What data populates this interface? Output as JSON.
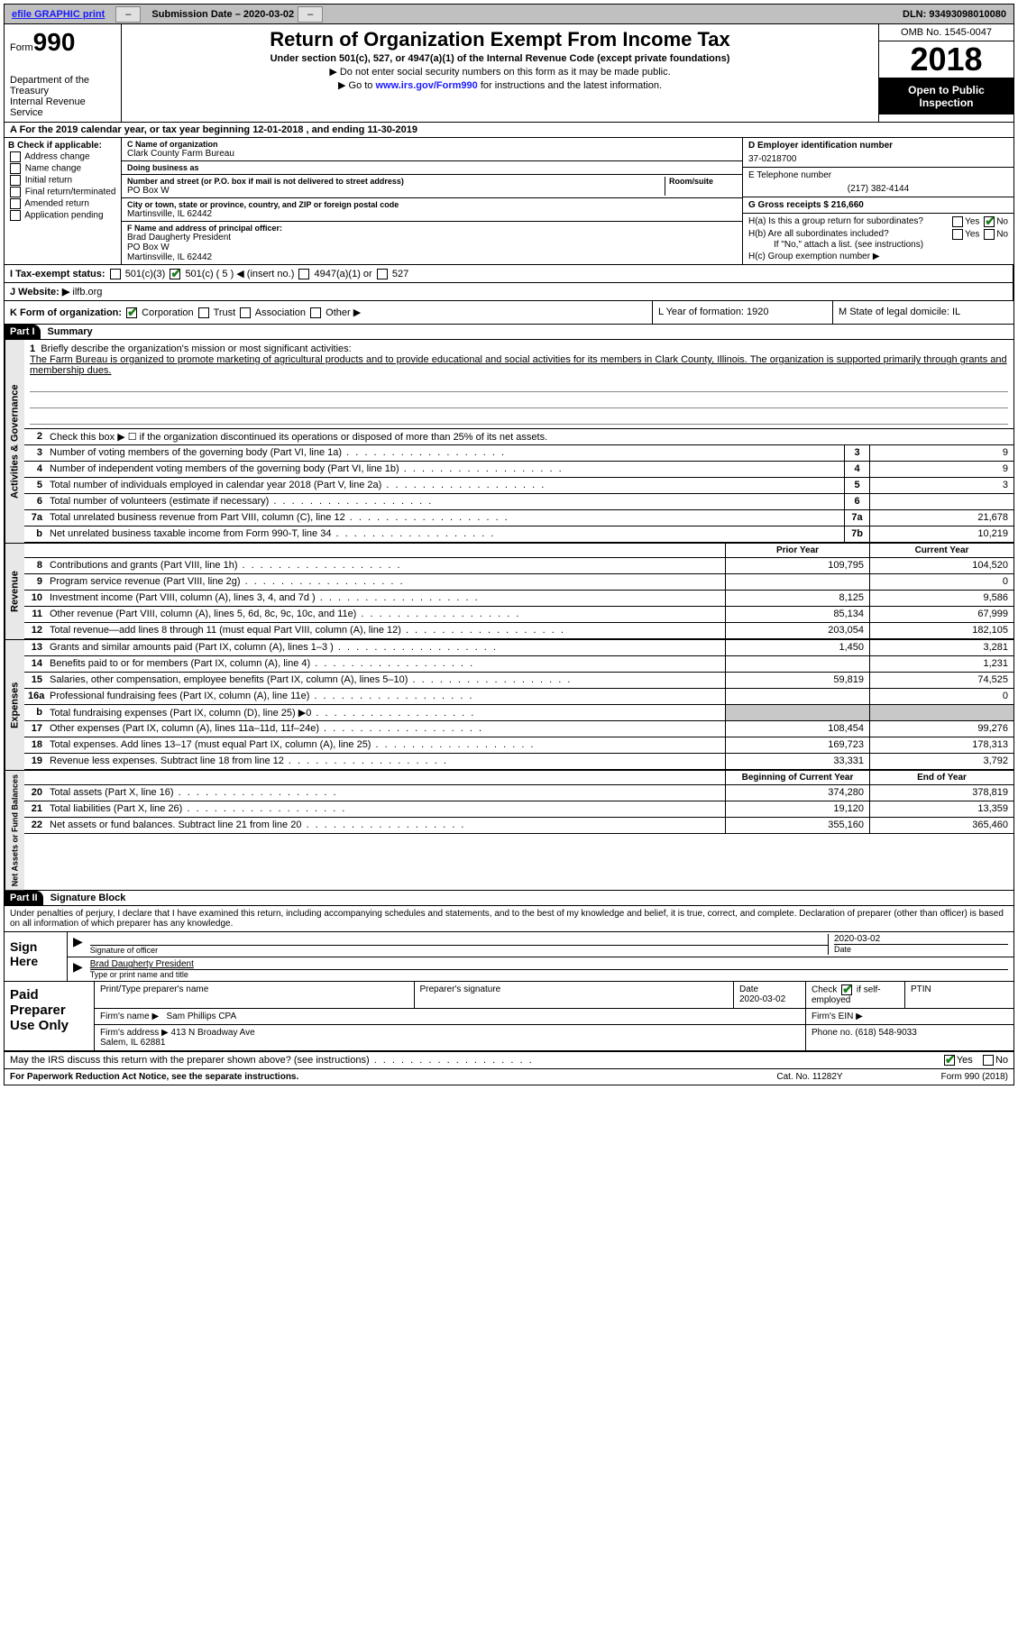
{
  "topbar": {
    "efile_link": "efile GRAPHIC print",
    "btn_hide": "–",
    "submission_label": "Submission Date – 2020-03-02",
    "dln": "DLN: 93493098010080"
  },
  "header": {
    "form_prefix": "Form",
    "form_number": "990",
    "dept": "Department of the Treasury\nInternal Revenue Service",
    "title": "Return of Organization Exempt From Income Tax",
    "subtitle": "Under section 501(c), 527, or 4947(a)(1) of the Internal Revenue Code (except private foundations)",
    "note1": "▶ Do not enter social security numbers on this form as it may be made public.",
    "note2_pre": "▶ Go to ",
    "note2_link": "www.irs.gov/Form990",
    "note2_post": " for instructions and the latest information.",
    "omb": "OMB No. 1545-0047",
    "year": "2018",
    "open_public": "Open to Public Inspection"
  },
  "lineA": "A  For the 2019 calendar year, or tax year beginning 12-01-2018   , and ending 11-30-2019",
  "blockB": {
    "label": "B Check if applicable:",
    "opts": [
      "Address change",
      "Name change",
      "Initial return",
      "Final return/terminated",
      "Amended return",
      "Application pending"
    ]
  },
  "blockC": {
    "name_label": "C Name of organization",
    "name": "Clark County Farm Bureau",
    "dba_label": "Doing business as",
    "dba": "",
    "addr_label": "Number and street (or P.O. box if mail is not delivered to street address)",
    "suite_label": "Room/suite",
    "addr": "PO Box W",
    "city_label": "City or town, state or province, country, and ZIP or foreign postal code",
    "city": "Martinsville, IL  62442",
    "f_label": "F  Name and address of principal officer:",
    "f_name": "Brad Daugherty President\nPO Box W\nMartinsville, IL  62442"
  },
  "blockD": {
    "label": "D Employer identification number",
    "value": "37-0218700"
  },
  "blockE": {
    "label": "E Telephone number",
    "value": "(217) 382-4144"
  },
  "blockG": {
    "label": "G Gross receipts $ 216,660"
  },
  "blockH": {
    "ha": "H(a)  Is this a group return for subordinates?",
    "hb": "H(b)  Are all subordinates included?",
    "hb_note": "If \"No,\" attach a list. (see instructions)",
    "hc": "H(c)  Group exemption number ▶",
    "yes": "Yes",
    "no": "No"
  },
  "lineI": {
    "label": "I   Tax-exempt status:",
    "o1": "501(c)(3)",
    "o2": "501(c) ( 5 ) ◀ (insert no.)",
    "o3": "4947(a)(1) or",
    "o4": "527"
  },
  "lineJ": {
    "label": "J   Website: ▶",
    "value": "ilfb.org"
  },
  "lineK": {
    "label": "K Form of organization:",
    "o1": "Corporation",
    "o2": "Trust",
    "o3": "Association",
    "o4": "Other ▶"
  },
  "lineL": {
    "label": "L Year of formation: 1920"
  },
  "lineM": {
    "label": "M State of legal domicile: IL"
  },
  "partI": {
    "hdr": "Part I",
    "title": "Summary"
  },
  "mission": {
    "num": "1",
    "label": "Briefly describe the organization's mission or most significant activities:",
    "text": "The Farm Bureau is organized to promote marketing of agricultural products and to provide educational and social activities for its members in Clark County, Illinois. The organization is supported primarily through grants and membership dues."
  },
  "line2": {
    "num": "2",
    "text": "Check this box ▶  ☐  if the organization discontinued its operations or disposed of more than 25% of its net assets."
  },
  "gov_rows": [
    {
      "n": "3",
      "d": "Number of voting members of the governing body (Part VI, line 1a)",
      "box": "3",
      "v": "9"
    },
    {
      "n": "4",
      "d": "Number of independent voting members of the governing body (Part VI, line 1b)",
      "box": "4",
      "v": "9"
    },
    {
      "n": "5",
      "d": "Total number of individuals employed in calendar year 2018 (Part V, line 2a)",
      "box": "5",
      "v": "3"
    },
    {
      "n": "6",
      "d": "Total number of volunteers (estimate if necessary)",
      "box": "6",
      "v": ""
    },
    {
      "n": "7a",
      "d": "Total unrelated business revenue from Part VIII, column (C), line 12",
      "box": "7a",
      "v": "21,678"
    },
    {
      "n": "b",
      "d": "Net unrelated business taxable income from Form 990-T, line 34",
      "box": "7b",
      "v": "10,219"
    }
  ],
  "py_hdr": {
    "prior": "Prior Year",
    "current": "Current Year"
  },
  "rev_rows": [
    {
      "n": "8",
      "d": "Contributions and grants (Part VIII, line 1h)",
      "p": "109,795",
      "c": "104,520"
    },
    {
      "n": "9",
      "d": "Program service revenue (Part VIII, line 2g)",
      "p": "",
      "c": "0"
    },
    {
      "n": "10",
      "d": "Investment income (Part VIII, column (A), lines 3, 4, and 7d )",
      "p": "8,125",
      "c": "9,586"
    },
    {
      "n": "11",
      "d": "Other revenue (Part VIII, column (A), lines 5, 6d, 8c, 9c, 10c, and 11e)",
      "p": "85,134",
      "c": "67,999"
    },
    {
      "n": "12",
      "d": "Total revenue—add lines 8 through 11 (must equal Part VIII, column (A), line 12)",
      "p": "203,054",
      "c": "182,105"
    }
  ],
  "exp_rows": [
    {
      "n": "13",
      "d": "Grants and similar amounts paid (Part IX, column (A), lines 1–3 )",
      "p": "1,450",
      "c": "3,281"
    },
    {
      "n": "14",
      "d": "Benefits paid to or for members (Part IX, column (A), line 4)",
      "p": "",
      "c": "1,231"
    },
    {
      "n": "15",
      "d": "Salaries, other compensation, employee benefits (Part IX, column (A), lines 5–10)",
      "p": "59,819",
      "c": "74,525"
    },
    {
      "n": "16a",
      "d": "Professional fundraising fees (Part IX, column (A), line 11e)",
      "p": "",
      "c": "0"
    },
    {
      "n": "b",
      "d": "Total fundraising expenses (Part IX, column (D), line 25) ▶0",
      "p": "SHADE",
      "c": "SHADE"
    },
    {
      "n": "17",
      "d": "Other expenses (Part IX, column (A), lines 11a–11d, 11f–24e)",
      "p": "108,454",
      "c": "99,276"
    },
    {
      "n": "18",
      "d": "Total expenses. Add lines 13–17 (must equal Part IX, column (A), line 25)",
      "p": "169,723",
      "c": "178,313"
    },
    {
      "n": "19",
      "d": "Revenue less expenses. Subtract line 18 from line 12",
      "p": "33,331",
      "c": "3,792"
    }
  ],
  "na_hdr": {
    "beg": "Beginning of Current Year",
    "end": "End of Year"
  },
  "na_rows": [
    {
      "n": "20",
      "d": "Total assets (Part X, line 16)",
      "p": "374,280",
      "c": "378,819"
    },
    {
      "n": "21",
      "d": "Total liabilities (Part X, line 26)",
      "p": "19,120",
      "c": "13,359"
    },
    {
      "n": "22",
      "d": "Net assets or fund balances. Subtract line 21 from line 20",
      "p": "355,160",
      "c": "365,460"
    }
  ],
  "vtabs": {
    "gov": "Activities & Governance",
    "rev": "Revenue",
    "exp": "Expenses",
    "na": "Net Assets or Fund Balances"
  },
  "partII": {
    "hdr": "Part II",
    "title": "Signature Block"
  },
  "penalty": "Under penalties of perjury, I declare that I have examined this return, including accompanying schedules and statements, and to the best of my knowledge and belief, it is true, correct, and complete. Declaration of preparer (other than officer) is based on all information of which preparer has any knowledge.",
  "sign": {
    "here": "Sign Here",
    "sig_label": "Signature of officer",
    "date_label": "Date",
    "date": "2020-03-02",
    "name": "Brad Daugherty  President",
    "name_label": "Type or print name and title"
  },
  "paid": {
    "left": "Paid Preparer Use Only",
    "r1": {
      "prep_name_lbl": "Print/Type preparer's name",
      "prep_sig_lbl": "Preparer's signature",
      "date_lbl": "Date",
      "date": "2020-03-02",
      "chk_lbl": "Check",
      "self": "if self-employed",
      "ptin_lbl": "PTIN"
    },
    "r2": {
      "firm_lbl": "Firm's name   ▶",
      "firm": "Sam Phillips CPA",
      "ein_lbl": "Firm's EIN ▶"
    },
    "r3": {
      "addr_lbl": "Firm's address ▶",
      "addr": "413 N Broadway Ave\nSalem, IL  62881",
      "phone_lbl": "Phone no. (618) 548-9033"
    }
  },
  "irs_discuss": "May the IRS discuss this return with the preparer shown above? (see instructions)",
  "footer": {
    "left": "For Paperwork Reduction Act Notice, see the separate instructions.",
    "mid": "Cat. No. 11282Y",
    "right": "Form 990 (2018)"
  }
}
